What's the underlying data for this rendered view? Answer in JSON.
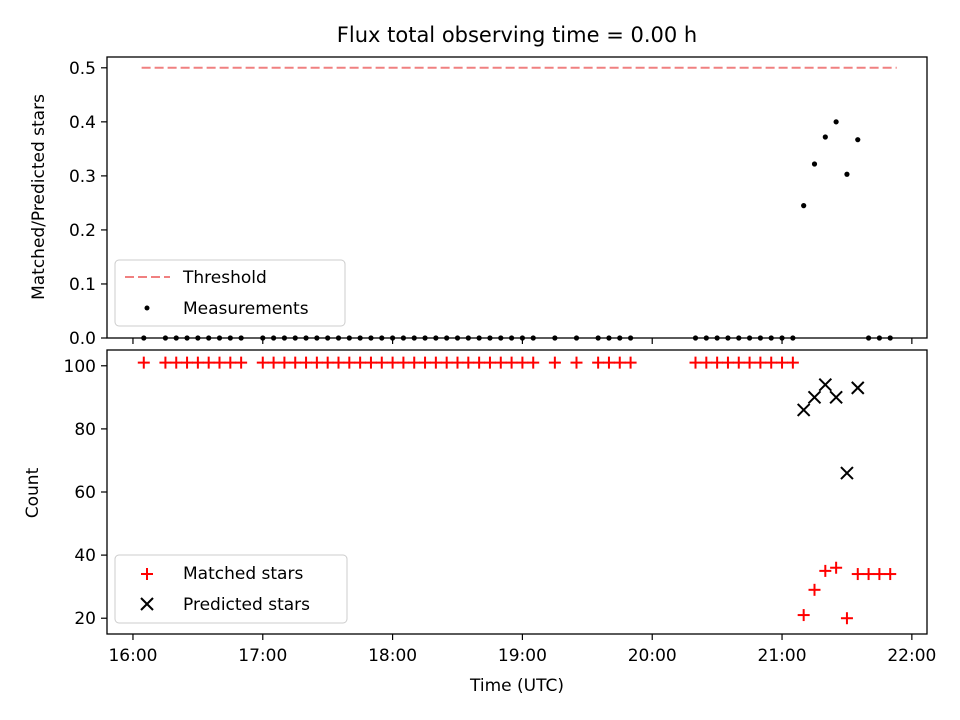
{
  "chart_data": [
    {
      "type": "scatter",
      "title": "Flux total observing time = 0.00 h",
      "xlabel": "",
      "ylabel": "Matched/Predicted stars",
      "ylim": [
        0,
        0.52
      ],
      "yticks": [
        "0.0",
        "0.1",
        "0.2",
        "0.3",
        "0.4",
        "0.5"
      ],
      "threshold": {
        "name": "Threshold",
        "value": 0.5,
        "x_start": "16:04",
        "x_end": "21:53",
        "color": "#f08080"
      },
      "series": [
        {
          "name": "Measurements",
          "color": "#000000",
          "x": [
            "16:05",
            "16:15",
            "16:20",
            "16:25",
            "16:30",
            "16:35",
            "16:40",
            "16:45",
            "16:50",
            "17:00",
            "17:05",
            "17:10",
            "17:15",
            "17:20",
            "17:25",
            "17:30",
            "17:35",
            "17:40",
            "17:45",
            "17:50",
            "17:55",
            "18:00",
            "18:05",
            "18:10",
            "18:15",
            "18:20",
            "18:25",
            "18:30",
            "18:35",
            "18:40",
            "18:45",
            "18:50",
            "18:55",
            "19:00",
            "19:05",
            "19:15",
            "19:25",
            "19:35",
            "19:40",
            "19:45",
            "19:50",
            "20:20",
            "20:25",
            "20:30",
            "20:35",
            "20:40",
            "20:45",
            "20:50",
            "20:55",
            "21:00",
            "21:05",
            "21:10",
            "21:15",
            "21:20",
            "21:25",
            "21:30",
            "21:35",
            "21:40",
            "21:45",
            "21:50"
          ],
          "y": [
            0,
            0,
            0,
            0,
            0,
            0,
            0,
            0,
            0,
            0,
            0,
            0,
            0,
            0,
            0,
            0,
            0,
            0,
            0,
            0,
            0,
            0,
            0,
            0,
            0,
            0,
            0,
            0,
            0,
            0,
            0,
            0,
            0,
            0,
            0,
            0,
            0,
            0,
            0,
            0,
            0,
            0,
            0,
            0,
            0,
            0,
            0,
            0,
            0,
            0,
            0,
            0.245,
            0.322,
            0.372,
            0.4,
            0.303,
            0.367,
            0,
            0,
            0
          ]
        }
      ],
      "legend": [
        "Threshold",
        "Measurements"
      ],
      "legend_position": "bottom-left"
    },
    {
      "type": "scatter",
      "xlabel": "Time (UTC)",
      "ylabel": "Count",
      "ylim": [
        15,
        105
      ],
      "yticks": [
        "20",
        "40",
        "60",
        "80",
        "100"
      ],
      "xlim": [
        "15:48",
        "22:07"
      ],
      "xticks": [
        "16:00",
        "17:00",
        "18:00",
        "19:00",
        "20:00",
        "21:00",
        "22:00"
      ],
      "series": [
        {
          "name": "Matched stars",
          "color": "#ff0000",
          "marker": "plus",
          "x": [
            "16:05",
            "16:15",
            "16:20",
            "16:25",
            "16:30",
            "16:35",
            "16:40",
            "16:45",
            "16:50",
            "17:00",
            "17:05",
            "17:10",
            "17:15",
            "17:20",
            "17:25",
            "17:30",
            "17:35",
            "17:40",
            "17:45",
            "17:50",
            "17:55",
            "18:00",
            "18:05",
            "18:10",
            "18:15",
            "18:20",
            "18:25",
            "18:30",
            "18:35",
            "18:40",
            "18:45",
            "18:50",
            "18:55",
            "19:00",
            "19:05",
            "19:15",
            "19:25",
            "19:35",
            "19:40",
            "19:45",
            "19:50",
            "20:20",
            "20:25",
            "20:30",
            "20:35",
            "20:40",
            "20:45",
            "20:50",
            "20:55",
            "21:00",
            "21:05",
            "21:10",
            "21:15",
            "21:20",
            "21:25",
            "21:30",
            "21:35",
            "21:40",
            "21:45",
            "21:50"
          ],
          "y": [
            101,
            101,
            101,
            101,
            101,
            101,
            101,
            101,
            101,
            101,
            101,
            101,
            101,
            101,
            101,
            101,
            101,
            101,
            101,
            101,
            101,
            101,
            101,
            101,
            101,
            101,
            101,
            101,
            101,
            101,
            101,
            101,
            101,
            101,
            101,
            101,
            101,
            101,
            101,
            101,
            101,
            101,
            101,
            101,
            101,
            101,
            101,
            101,
            101,
            101,
            101,
            21,
            29,
            35,
            36,
            20,
            34,
            34,
            34,
            34
          ]
        },
        {
          "name": "Predicted stars",
          "color": "#000000",
          "marker": "x",
          "x": [
            "21:10",
            "21:15",
            "21:20",
            "21:25",
            "21:30",
            "21:35"
          ],
          "y": [
            86,
            90,
            94,
            90,
            66,
            93
          ]
        }
      ],
      "legend": [
        "Matched stars",
        "Predicted stars"
      ],
      "legend_position": "bottom-left"
    }
  ]
}
